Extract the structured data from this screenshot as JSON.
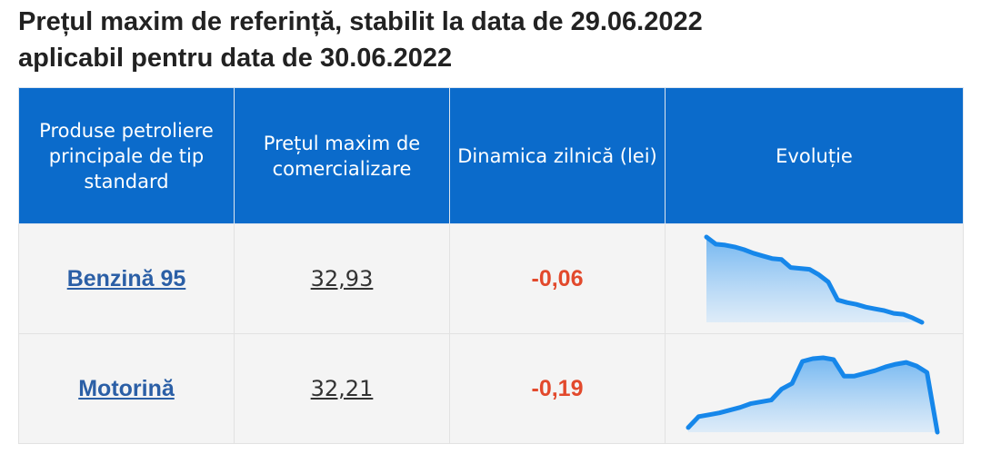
{
  "header": {
    "title_lines": [
      "Prețul maxim de referință, stabilit la data de 29.06.2022",
      "aplicabil pentru data de 30.06.2022"
    ]
  },
  "table": {
    "headers": [
      "Produse petroliere principale de tip standard",
      "Prețul maxim de comercializare",
      "Dinamica zilnică (lei)",
      "Evoluție"
    ],
    "rows": [
      {
        "product": "Benzină 95",
        "price": "32,93",
        "change": "-0,06",
        "trend": [
          100,
          92,
          91,
          89,
          86,
          82,
          79,
          76,
          75,
          66,
          65,
          64,
          58,
          50,
          30,
          27,
          25,
          22,
          20,
          18,
          15,
          14,
          10,
          5
        ]
      },
      {
        "product": "Motorină",
        "price": "32,21",
        "change": "-0,19",
        "trend": [
          10,
          22,
          24,
          26,
          29,
          32,
          36,
          38,
          40,
          52,
          58,
          82,
          85,
          86,
          84,
          66,
          66,
          69,
          72,
          76,
          79,
          81,
          77,
          70,
          5
        ]
      }
    ]
  }
}
